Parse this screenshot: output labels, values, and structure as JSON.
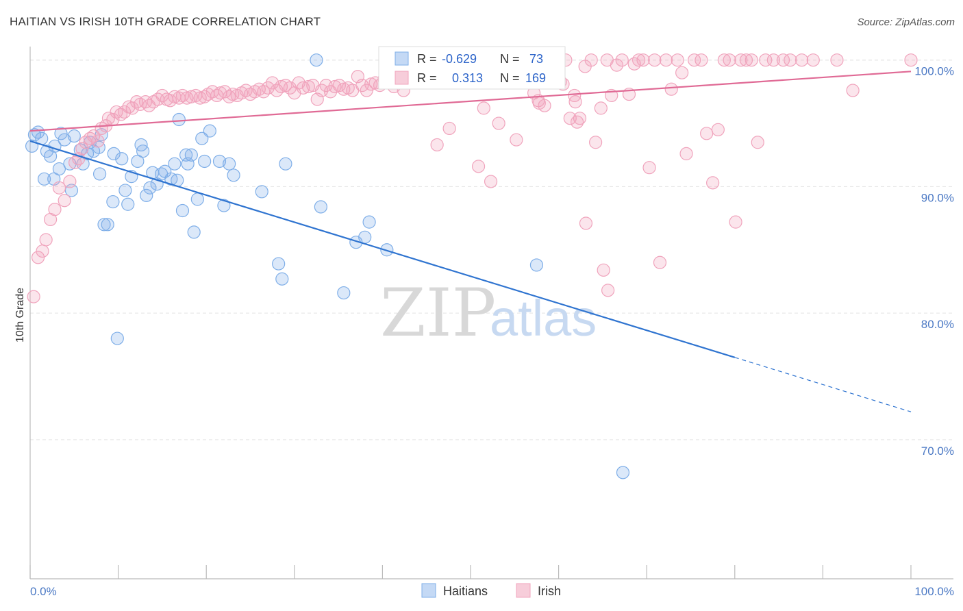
{
  "title": "HAITIAN VS IRISH 10TH GRADE CORRELATION CHART",
  "source": "Source: ZipAtlas.com",
  "chart_data": {
    "type": "scatter",
    "xlabel": "",
    "ylabel": "10th Grade",
    "xlim": [
      0,
      100
    ],
    "ylim": [
      59,
      101.5
    ],
    "x_tick_labels": [
      "0.0%",
      "100.0%"
    ],
    "y_ticks": [
      70,
      80,
      90,
      100
    ],
    "y_tick_labels": [
      "70.0%",
      "80.0%",
      "90.0%",
      "100.0%"
    ],
    "grid": true,
    "watermark": "ZIPatlas",
    "legend": [
      {
        "name": "Haitians",
        "r_label": "R =",
        "r": "-0.629",
        "n_label": "N =",
        "n": "73",
        "color": "#7eaee8"
      },
      {
        "name": "Irish",
        "r_label": "R =",
        "r": "0.313",
        "n_label": "N =",
        "n": "169",
        "color": "#f0a3bc"
      }
    ],
    "series": [
      {
        "name": "Haitians",
        "color": "#7eaee8",
        "trend": {
          "x0": 0,
          "y0": 93.6,
          "x1": 80,
          "y1": 76.5,
          "dash_to_x": 100,
          "dash_to_y": 72.2,
          "color": "#2f74d0"
        },
        "points": [
          [
            0.2,
            93.2
          ],
          [
            0.5,
            94.1
          ],
          [
            0.9,
            94.3
          ],
          [
            1.3,
            93.8
          ],
          [
            1.9,
            92.8
          ],
          [
            2.3,
            92.4
          ],
          [
            2.8,
            93.2
          ],
          [
            3.5,
            94.2
          ],
          [
            3.9,
            93.7
          ],
          [
            4.5,
            91.8
          ],
          [
            5,
            94
          ],
          [
            5.7,
            92.9
          ],
          [
            6,
            91.8
          ],
          [
            6.5,
            92.6
          ],
          [
            6.8,
            93.5
          ],
          [
            7.2,
            92.8
          ],
          [
            7.8,
            93.1
          ],
          [
            8.1,
            94.1
          ],
          [
            1.6,
            90.6
          ],
          [
            2.7,
            90.6
          ],
          [
            3.3,
            91.4
          ],
          [
            4.7,
            89.7
          ],
          [
            7.9,
            91
          ],
          [
            8.4,
            87
          ],
          [
            8.8,
            87
          ],
          [
            9.4,
            88.8
          ],
          [
            9.5,
            92.6
          ],
          [
            10.4,
            92.2
          ],
          [
            10.8,
            89.7
          ],
          [
            11.1,
            88.6
          ],
          [
            11.5,
            90.8
          ],
          [
            12.2,
            92
          ],
          [
            12.6,
            93.3
          ],
          [
            12.8,
            92.8
          ],
          [
            13.2,
            89.3
          ],
          [
            13.6,
            89.9
          ],
          [
            13.9,
            91.1
          ],
          [
            14.4,
            90.2
          ],
          [
            14.9,
            91
          ],
          [
            15.3,
            91.2
          ],
          [
            16,
            90.6
          ],
          [
            16.4,
            91.8
          ],
          [
            16.7,
            90.5
          ],
          [
            16.9,
            95.3
          ],
          [
            17.3,
            88.1
          ],
          [
            17.7,
            92.5
          ],
          [
            17.9,
            91.8
          ],
          [
            18.3,
            92.5
          ],
          [
            18.6,
            86.4
          ],
          [
            19,
            89
          ],
          [
            19.5,
            93.8
          ],
          [
            19.8,
            92
          ],
          [
            20.4,
            94.4
          ],
          [
            21.5,
            92
          ],
          [
            22,
            88.5
          ],
          [
            22.6,
            91.8
          ],
          [
            23.1,
            90.9
          ],
          [
            26.3,
            89.6
          ],
          [
            28.2,
            83.9
          ],
          [
            28.6,
            82.7
          ],
          [
            29,
            91.8
          ],
          [
            32.5,
            100
          ],
          [
            33,
            88.4
          ],
          [
            35.6,
            81.6
          ],
          [
            37,
            85.6
          ],
          [
            38,
            86
          ],
          [
            38.5,
            87.2
          ],
          [
            40.5,
            85
          ],
          [
            57.5,
            83.8
          ],
          [
            67.3,
            67.4
          ],
          [
            9.9,
            78
          ]
        ]
      },
      {
        "name": "Irish",
        "color": "#f0a3bc",
        "trend": {
          "x0": 0,
          "y0": 94.4,
          "x1": 100,
          "y1": 99.1,
          "color": "#e06a95"
        },
        "points": [
          [
            0.4,
            81.3
          ],
          [
            0.9,
            84.4
          ],
          [
            1.4,
            84.9
          ],
          [
            1.8,
            85.8
          ],
          [
            2.3,
            87.4
          ],
          [
            2.8,
            88.2
          ],
          [
            3.3,
            89.9
          ],
          [
            3.9,
            88.9
          ],
          [
            4.5,
            90.4
          ],
          [
            5.1,
            91.9
          ],
          [
            5.5,
            92.2
          ],
          [
            5.9,
            93
          ],
          [
            6.3,
            93.5
          ],
          [
            6.8,
            93.8
          ],
          [
            7.2,
            94
          ],
          [
            7.7,
            93.6
          ],
          [
            8.1,
            94.6
          ],
          [
            8.6,
            94.8
          ],
          [
            8.9,
            95.4
          ],
          [
            9.4,
            95.3
          ],
          [
            9.8,
            95.9
          ],
          [
            10.3,
            95.7
          ],
          [
            10.7,
            95.9
          ],
          [
            11.2,
            96.3
          ],
          [
            11.6,
            96.2
          ],
          [
            12.1,
            96.7
          ],
          [
            12.5,
            96.5
          ],
          [
            13.1,
            96.7
          ],
          [
            13.5,
            96.4
          ],
          [
            14,
            96.7
          ],
          [
            14.5,
            96.9
          ],
          [
            15,
            97.2
          ],
          [
            15.5,
            96.9
          ],
          [
            15.9,
            96.8
          ],
          [
            16.4,
            97.1
          ],
          [
            16.9,
            97
          ],
          [
            17.3,
            97.2
          ],
          [
            17.8,
            97
          ],
          [
            18.3,
            97.1
          ],
          [
            18.8,
            97.2
          ],
          [
            19.3,
            97
          ],
          [
            19.8,
            97.1
          ],
          [
            20.2,
            97.3
          ],
          [
            20.7,
            97.5
          ],
          [
            21.2,
            97.2
          ],
          [
            21.6,
            97.4
          ],
          [
            22.1,
            97.5
          ],
          [
            22.6,
            97.1
          ],
          [
            23,
            97.3
          ],
          [
            23.5,
            97.2
          ],
          [
            24,
            97.4
          ],
          [
            24.5,
            97.6
          ],
          [
            25,
            97.3
          ],
          [
            25.5,
            97.5
          ],
          [
            26,
            97.7
          ],
          [
            26.5,
            97.5
          ],
          [
            27,
            97.8
          ],
          [
            27.5,
            98.2
          ],
          [
            28,
            97.6
          ],
          [
            28.5,
            97.9
          ],
          [
            29,
            98
          ],
          [
            29.5,
            97.8
          ],
          [
            30,
            97.4
          ],
          [
            30.5,
            98.2
          ],
          [
            31,
            97.8
          ],
          [
            31.6,
            97.9
          ],
          [
            32.1,
            98
          ],
          [
            32.6,
            96.9
          ],
          [
            33.1,
            97.6
          ],
          [
            33.6,
            98
          ],
          [
            34.1,
            97.5
          ],
          [
            34.6,
            97.9
          ],
          [
            35.1,
            98
          ],
          [
            35.6,
            97.7
          ],
          [
            36.1,
            97.8
          ],
          [
            36.6,
            97.6
          ],
          [
            37.2,
            98.7
          ],
          [
            37.7,
            98
          ],
          [
            38.2,
            97.6
          ],
          [
            38.7,
            98.1
          ],
          [
            39.2,
            98.2
          ],
          [
            39.7,
            98
          ],
          [
            40.2,
            98.5
          ],
          [
            40.8,
            98.3
          ],
          [
            41.3,
            97.9
          ],
          [
            41.8,
            98.7
          ],
          [
            42.4,
            97.6
          ],
          [
            42.9,
            98.2
          ],
          [
            43.5,
            98.9
          ],
          [
            44,
            99.3
          ],
          [
            44.5,
            98.7
          ],
          [
            45,
            98.6
          ],
          [
            45.6,
            99.5
          ],
          [
            46.2,
            99.2
          ],
          [
            46.8,
            98.8
          ],
          [
            47.3,
            99.1
          ],
          [
            47.8,
            99.4
          ],
          [
            48.4,
            99.6
          ],
          [
            48.9,
            99.1
          ],
          [
            49.5,
            99.3
          ],
          [
            50.1,
            99.7
          ],
          [
            50.7,
            99.4
          ],
          [
            51.2,
            99.1
          ],
          [
            51.8,
            99.5
          ],
          [
            52.4,
            98.5
          ],
          [
            53,
            99.1
          ],
          [
            53.6,
            99.6
          ],
          [
            54.1,
            99.8
          ],
          [
            54.7,
            99.2
          ],
          [
            55.3,
            99.6
          ],
          [
            56,
            99.8
          ],
          [
            56.6,
            99.7
          ],
          [
            57.2,
            97.4
          ],
          [
            57.8,
            96.6
          ],
          [
            58.4,
            96.4
          ],
          [
            59,
            99.6
          ],
          [
            59.6,
            99.7
          ],
          [
            60.2,
            98.3
          ],
          [
            60.8,
            100
          ],
          [
            61.3,
            95.4
          ],
          [
            61.9,
            96.7
          ],
          [
            62.4,
            95.4
          ],
          [
            63,
            99.5
          ],
          [
            63.7,
            100
          ],
          [
            64.2,
            93.5
          ],
          [
            64.8,
            96.2
          ],
          [
            65.5,
            100
          ],
          [
            66,
            97.2
          ],
          [
            66.6,
            99.6
          ],
          [
            67.2,
            100
          ],
          [
            68,
            97.3
          ],
          [
            68.6,
            99.7
          ],
          [
            69.1,
            100
          ],
          [
            69.6,
            100
          ],
          [
            70.3,
            91.5
          ],
          [
            70.9,
            100
          ],
          [
            71.5,
            84
          ],
          [
            72.2,
            100
          ],
          [
            72.8,
            97.7
          ],
          [
            73.5,
            100
          ],
          [
            74,
            99
          ],
          [
            74.5,
            92.6
          ],
          [
            75.4,
            100
          ],
          [
            76.2,
            100
          ],
          [
            76.8,
            94.2
          ],
          [
            77.5,
            90.3
          ],
          [
            78.1,
            94.5
          ],
          [
            78.8,
            100
          ],
          [
            79.4,
            100
          ],
          [
            80.1,
            87.2
          ],
          [
            80.7,
            100
          ],
          [
            81.3,
            100
          ],
          [
            81.9,
            100
          ],
          [
            82.6,
            93.5
          ],
          [
            83.5,
            100
          ],
          [
            84.4,
            100
          ],
          [
            85.5,
            100
          ],
          [
            86.3,
            100
          ],
          [
            87.6,
            100
          ],
          [
            88.9,
            100
          ],
          [
            91.6,
            100
          ],
          [
            93.4,
            97.6
          ],
          [
            100,
            100
          ],
          [
            59.4,
            100
          ],
          [
            49.8,
            100
          ],
          [
            51.5,
            96.2
          ],
          [
            53.2,
            95
          ],
          [
            55.2,
            93.7
          ],
          [
            57.7,
            96.8
          ],
          [
            46.2,
            93.3
          ],
          [
            47.6,
            94.6
          ],
          [
            50.9,
            91.6
          ],
          [
            52.3,
            90.4
          ],
          [
            63.1,
            87.1
          ],
          [
            65.1,
            83.4
          ],
          [
            65.6,
            81.8
          ],
          [
            60.5,
            98.1
          ],
          [
            61.8,
            97.2
          ],
          [
            62.1,
            95.1
          ]
        ]
      }
    ]
  },
  "legend_bottom": [
    "Haitians",
    "Irish"
  ]
}
